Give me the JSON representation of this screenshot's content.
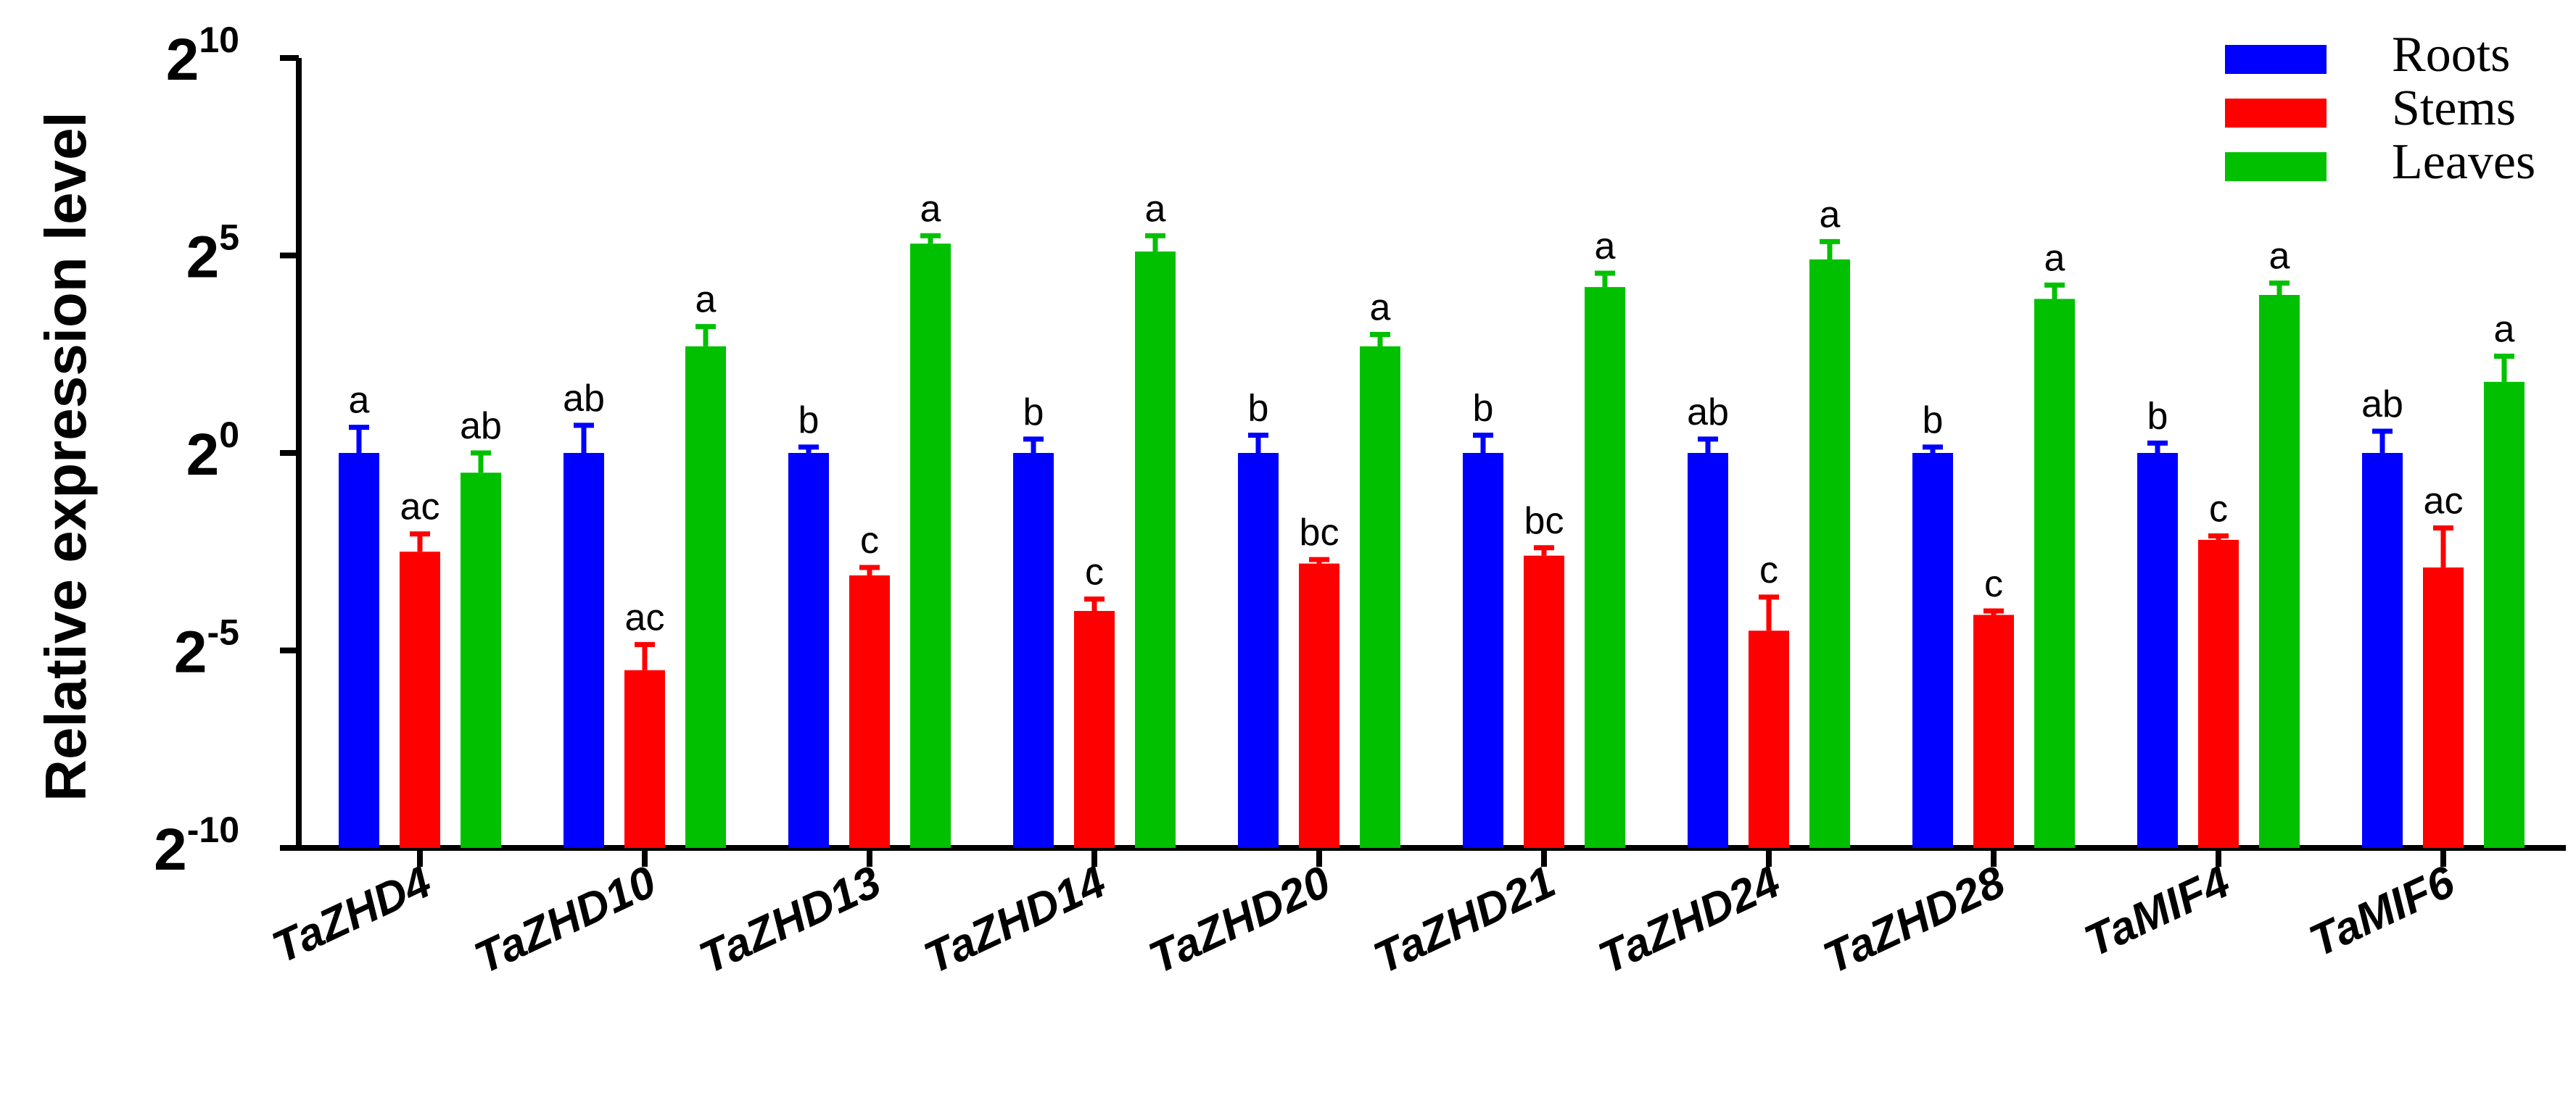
{
  "chart_data": {
    "type": "bar",
    "ylabel": "Relative expression level",
    "y_scale": "log2",
    "ylim_exponent": [
      -10,
      10
    ],
    "y_ticks": [
      {
        "base": "2",
        "exp": "10",
        "value": 10
      },
      {
        "base": "2",
        "exp": "5",
        "value": 5
      },
      {
        "base": "2",
        "exp": "0",
        "value": 0
      },
      {
        "base": "2",
        "exp": "-5",
        "value": -5
      },
      {
        "base": "2",
        "exp": "-10",
        "value": -10
      }
    ],
    "categories": [
      "TaZHD4",
      "TaZHD10",
      "TaZHD13",
      "TaZHD14",
      "TaZHD20",
      "TaZHD21",
      "TaZHD24",
      "TaZHD28",
      "TaMIF4",
      "TaMIF6"
    ],
    "legend_position": "top-right",
    "series": [
      {
        "name": "Roots",
        "color": "#0000ff",
        "values_log2": [
          0,
          0,
          0,
          0,
          0,
          0,
          0,
          0,
          0,
          0
        ],
        "error_log2": [
          0.65,
          0.7,
          0.15,
          0.35,
          0.45,
          0.45,
          0.35,
          0.15,
          0.25,
          0.55
        ],
        "letters": [
          "a",
          "ab",
          "b",
          "b",
          "b",
          "b",
          "ab",
          "b",
          "b",
          "ab"
        ]
      },
      {
        "name": "Stems",
        "color": "#ff0000",
        "values_log2": [
          -2.5,
          -5.5,
          -3.1,
          -4.0,
          -2.8,
          -2.6,
          -4.5,
          -4.1,
          -2.2,
          -2.9
        ],
        "error_log2": [
          0.45,
          0.65,
          0.2,
          0.3,
          0.1,
          0.2,
          0.85,
          0.1,
          0.1,
          1.0
        ],
        "letters": [
          "ac",
          "ac",
          "c",
          "c",
          "bc",
          "bc",
          "c",
          "c",
          "c",
          "ac"
        ]
      },
      {
        "name": "Leaves",
        "color": "#00c000",
        "values_log2": [
          -0.5,
          2.7,
          5.3,
          5.1,
          2.7,
          4.2,
          4.9,
          3.9,
          4.0,
          1.8
        ],
        "error_log2": [
          0.5,
          0.5,
          0.2,
          0.4,
          0.3,
          0.35,
          0.45,
          0.35,
          0.3,
          0.65
        ],
        "letters": [
          "ab",
          "a",
          "a",
          "a",
          "a",
          "a",
          "a",
          "a",
          "a",
          "a"
        ]
      }
    ]
  }
}
